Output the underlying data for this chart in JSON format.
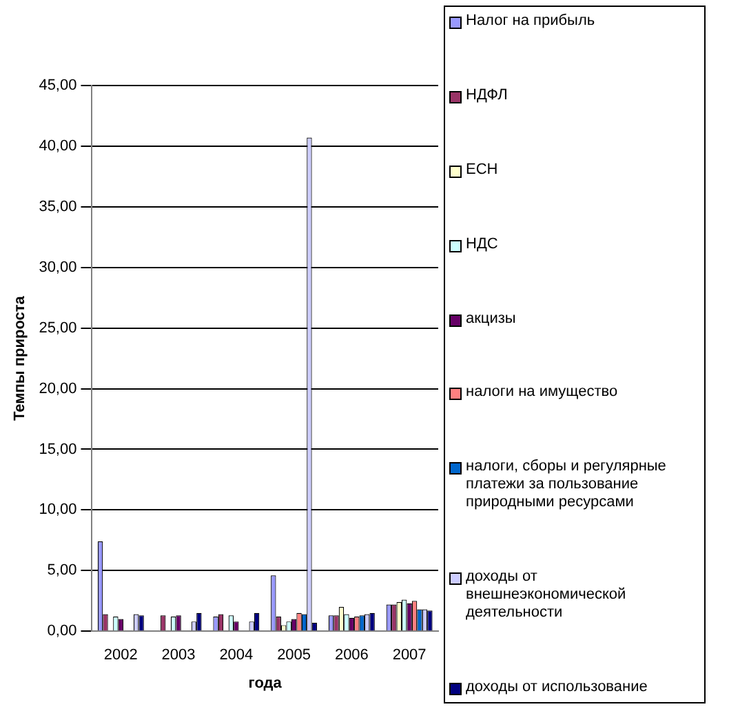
{
  "chart_data": {
    "type": "bar",
    "xlabel": "года",
    "ylabel": "Темпы прироста",
    "categories": [
      "2002",
      "2003",
      "2004",
      "2005",
      "2006",
      "2007"
    ],
    "ylim": [
      0,
      45
    ],
    "yticks": [
      {
        "value": 0,
        "label": "0,00"
      },
      {
        "value": 5,
        "label": "5,00"
      },
      {
        "value": 10,
        "label": "10,00"
      },
      {
        "value": 15,
        "label": "15,00"
      },
      {
        "value": 20,
        "label": "20,00"
      },
      {
        "value": 25,
        "label": "25,00"
      },
      {
        "value": 30,
        "label": "30,00"
      },
      {
        "value": 35,
        "label": "35,00"
      },
      {
        "value": 40,
        "label": "40,00"
      },
      {
        "value": 45,
        "label": "45,00"
      }
    ],
    "grid": "y",
    "legend": "right",
    "series": [
      {
        "name": "Налог на прибыль",
        "color": "#9999ff",
        "values": [
          7.4,
          null,
          1.2,
          4.6,
          1.3,
          2.2
        ]
      },
      {
        "name": "НДФЛ",
        "color": "#993366",
        "values": [
          1.4,
          1.3,
          1.4,
          1.2,
          1.3,
          2.2
        ]
      },
      {
        "name": "ЕСН",
        "color": "#ffffcc",
        "values": [
          null,
          null,
          null,
          0.5,
          2.0,
          2.4
        ]
      },
      {
        "name": "НДС",
        "color": "#ccffff",
        "values": [
          1.2,
          1.2,
          1.3,
          0.8,
          1.4,
          2.6
        ]
      },
      {
        "name": "акцизы",
        "color": "#660066",
        "values": [
          1.0,
          1.3,
          0.8,
          1.0,
          1.1,
          2.3
        ]
      },
      {
        "name": "налоги на имущество",
        "color": "#ff8080",
        "values": [
          null,
          null,
          null,
          1.5,
          1.2,
          2.5
        ]
      },
      {
        "name": "налоги, сборы и регулярные платежи за пользование природными ресурсами",
        "color": "#0066cc",
        "values": [
          null,
          null,
          null,
          1.4,
          1.3,
          1.8
        ]
      },
      {
        "name": "доходы от внешнеэкономической деятельности",
        "color": "#ccccff",
        "values": [
          1.4,
          0.8,
          0.8,
          40.7,
          1.4,
          1.8
        ]
      },
      {
        "name": "доходы от использование",
        "color": "#000080",
        "values": [
          1.3,
          1.5,
          1.5,
          0.7,
          1.5,
          1.7
        ]
      }
    ]
  }
}
